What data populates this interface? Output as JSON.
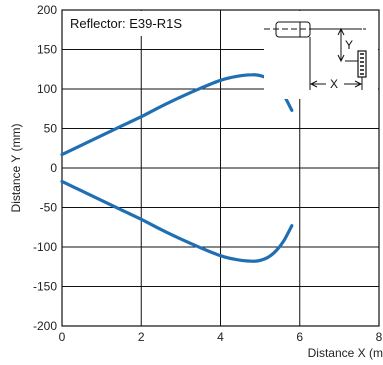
{
  "chart_data": {
    "type": "line",
    "title": "Reflector: E39-R1S",
    "xlabel": "Distance X (m",
    "ylabel": "Distance Y (mm)",
    "xlim": [
      0,
      8
    ],
    "ylim": [
      -200,
      200
    ],
    "xticks": [
      "0",
      "2",
      "4",
      "6",
      "8"
    ],
    "yticks": [
      "200",
      "150",
      "100",
      "50",
      "0",
      "-50",
      "-100",
      "-150",
      "-200"
    ],
    "grid": true,
    "series": [
      {
        "color": "#1f6fb2",
        "x": [
          0,
          0.5,
          1.0,
          1.5,
          2.0,
          2.5,
          3.0,
          3.5,
          4.0,
          4.4,
          4.8,
          5.0,
          5.2,
          5.4,
          5.6,
          5.8
        ],
        "y": [
          17,
          29,
          41,
          53,
          65,
          78,
          90,
          101,
          111,
          116,
          118,
          117,
          113,
          105,
          92,
          73
        ]
      },
      {
        "color": "#1f6fb2",
        "x": [
          0,
          0.5,
          1.0,
          1.5,
          2.0,
          2.5,
          3.0,
          3.5,
          4.0,
          4.4,
          4.8,
          5.0,
          5.2,
          5.4,
          5.6,
          5.8
        ],
        "y": [
          -17,
          -29,
          -41,
          -53,
          -65,
          -78,
          -90,
          -101,
          -111,
          -116,
          -118,
          -117,
          -113,
          -105,
          -92,
          -73
        ]
      }
    ],
    "diagram": {
      "y_label": "Y",
      "x_label": "X"
    }
  }
}
